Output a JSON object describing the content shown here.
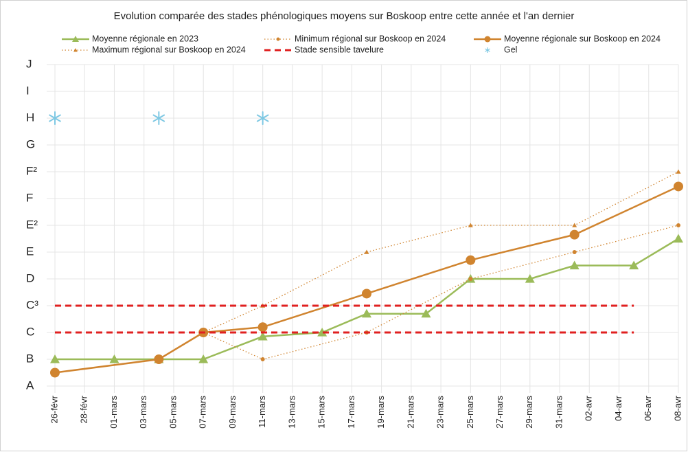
{
  "chart_data": {
    "type": "line",
    "title": "Evolution comparée des stades phénologiques moyens sur Boskoop entre cette année et l'an dernier",
    "xlim": [
      0,
      42
    ],
    "xticks": [
      {
        "value": 0,
        "label": "26-févr"
      },
      {
        "value": 2,
        "label": "28-févr"
      },
      {
        "value": 4,
        "label": "01-mars"
      },
      {
        "value": 6,
        "label": "03-mars"
      },
      {
        "value": 8,
        "label": "05-mars"
      },
      {
        "value": 10,
        "label": "07-mars"
      },
      {
        "value": 12,
        "label": "09-mars"
      },
      {
        "value": 14,
        "label": "11-mars"
      },
      {
        "value": 16,
        "label": "13-mars"
      },
      {
        "value": 18,
        "label": "15-mars"
      },
      {
        "value": 20,
        "label": "17-mars"
      },
      {
        "value": 22,
        "label": "19-mars"
      },
      {
        "value": 24,
        "label": "21-mars"
      },
      {
        "value": 26,
        "label": "23-mars"
      },
      {
        "value": 28,
        "label": "25-mars"
      },
      {
        "value": 30,
        "label": "27-mars"
      },
      {
        "value": 32,
        "label": "29-mars"
      },
      {
        "value": 34,
        "label": "31-mars"
      },
      {
        "value": 36,
        "label": "02-avr"
      },
      {
        "value": 38,
        "label": "04-avr"
      },
      {
        "value": 40,
        "label": "06-avr"
      },
      {
        "value": 42,
        "label": "08-avr"
      }
    ],
    "ylim": [
      0,
      12
    ],
    "yticks": [
      {
        "value": 0,
        "label": "A"
      },
      {
        "value": 1,
        "label": "B"
      },
      {
        "value": 2,
        "label": "C"
      },
      {
        "value": 3,
        "label": "C³"
      },
      {
        "value": 4,
        "label": "D"
      },
      {
        "value": 5,
        "label": "E"
      },
      {
        "value": 6,
        "label": "E²"
      },
      {
        "value": 7,
        "label": "F"
      },
      {
        "value": 8,
        "label": "F²"
      },
      {
        "value": 9,
        "label": "G"
      },
      {
        "value": 10,
        "label": "H"
      },
      {
        "value": 11,
        "label": "I"
      },
      {
        "value": 12,
        "label": "J"
      }
    ],
    "grid": true,
    "legend": "top",
    "series": [
      {
        "name": "Moyenne régionale en 2023",
        "color": "#9bbb59",
        "marker": "triangle",
        "style": "solid",
        "x": [
          0,
          4,
          7,
          10,
          14,
          18,
          21,
          25,
          28,
          32,
          35,
          39,
          42
        ],
        "values": [
          1,
          1,
          1,
          1,
          1.85,
          2,
          2.7,
          2.7,
          4,
          4,
          4.5,
          4.5,
          5.5
        ]
      },
      {
        "name": "Minimum régional sur Boskoop en 2024",
        "color": "#d0842f",
        "marker": "circle-small",
        "style": "dotted",
        "x": [
          10,
          14,
          21,
          28,
          35,
          42
        ],
        "values": [
          2,
          1,
          2,
          4,
          5,
          6
        ]
      },
      {
        "name": "Moyenne régionale sur Boskoop en 2024",
        "color": "#d0842f",
        "marker": "circle",
        "style": "solid",
        "x": [
          0,
          7,
          10,
          14,
          21,
          28,
          35,
          42
        ],
        "values": [
          0.5,
          1,
          2,
          2.2,
          3.45,
          4.7,
          5.65,
          7.45
        ]
      },
      {
        "name": "Maximum régional sur Boskoop en 2024",
        "color": "#d0842f",
        "marker": "triangle-small",
        "style": "dotted",
        "x": [
          10,
          14,
          21,
          28,
          35,
          42
        ],
        "values": [
          2,
          3,
          5,
          6,
          6,
          8
        ]
      },
      {
        "name": "Stade sensible tavelure",
        "color": "#e02020",
        "marker": "hline",
        "style": "dashed",
        "x": [
          0,
          39
        ],
        "values": [
          3,
          2
        ]
      },
      {
        "name": "Gel",
        "color": "#7ec8e3",
        "marker": "snowflake",
        "style": "none",
        "x": [
          0,
          7,
          14
        ],
        "values": [
          10,
          10,
          10
        ]
      }
    ]
  }
}
